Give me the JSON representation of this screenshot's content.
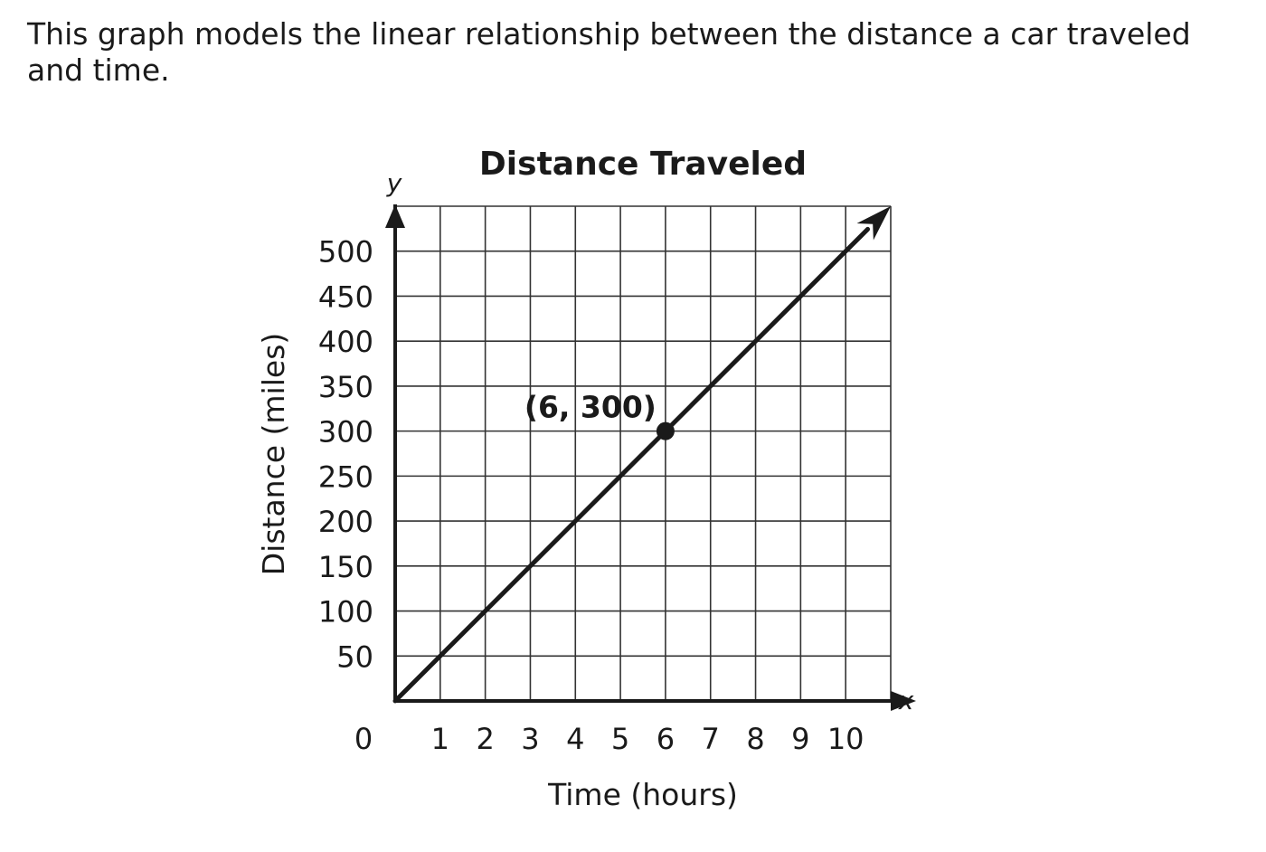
{
  "question": {
    "text": "This graph models the linear relationship between the distance a car traveled and time."
  },
  "chart_data": {
    "type": "line",
    "title": "Distance Traveled",
    "xlabel": "Time (hours)",
    "ylabel": "Distance (miles)",
    "x_var": "x",
    "y_var": "y",
    "xlim": [
      0,
      11
    ],
    "ylim": [
      0,
      550
    ],
    "origin_label": "0",
    "x_ticks": [
      1,
      2,
      3,
      4,
      5,
      6,
      7,
      8,
      9,
      10
    ],
    "y_ticks": [
      50,
      100,
      150,
      200,
      250,
      300,
      350,
      400,
      450,
      500
    ],
    "grid": true,
    "series": [
      {
        "x": [
          0,
          11
        ],
        "y": [
          0,
          550
        ],
        "arrow_end": true
      }
    ],
    "points": [
      {
        "x": 6,
        "y": 300,
        "label": "(6, 300)"
      }
    ],
    "line_color": "#1a1a1a"
  }
}
